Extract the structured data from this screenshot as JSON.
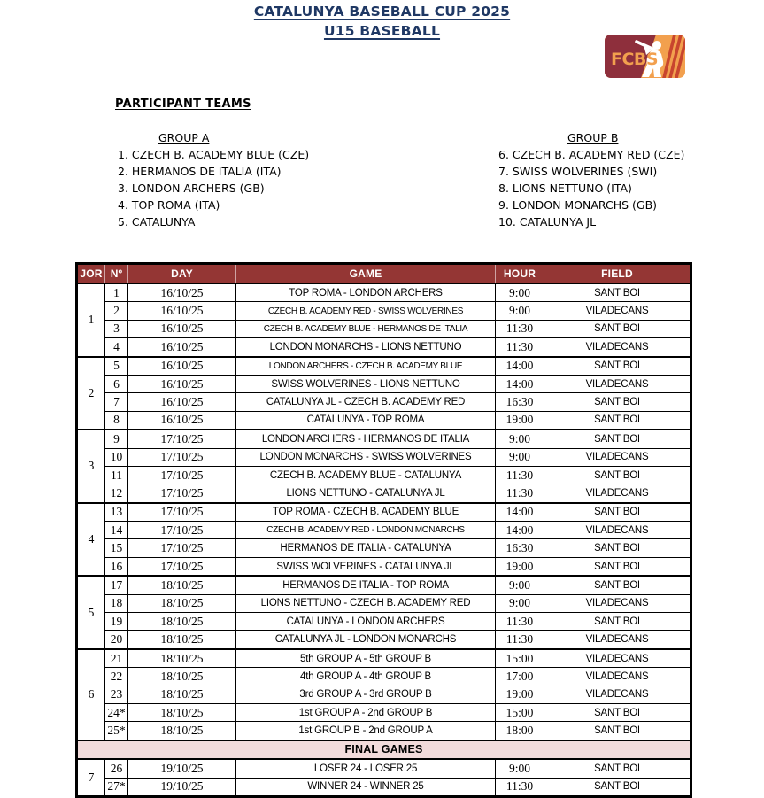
{
  "title": {
    "line1": "CATALUNYA BASEBALL CUP 2025",
    "line2": "U15 BASEBALL"
  },
  "logo": {
    "text": "FCBS"
  },
  "participants": {
    "heading": "PARTICIPANT TEAMS",
    "groups": [
      {
        "heading": "GROUP A",
        "teams": [
          "1. CZECH B. ACADEMY BLUE (CZE)",
          "2. HERMANOS DE ITALIA (ITA)",
          "3. LONDON ARCHERS (GB)",
          "4. TOP ROMA (ITA)",
          "5. CATALUNYA"
        ]
      },
      {
        "heading": "GROUP B",
        "teams": [
          "6. CZECH B. ACADEMY RED (CZE)",
          "7. SWISS WOLVERINES (SWI)",
          "8. LIONS NETTUNO (ITA)",
          "9. LONDON MONARCHS (GB)",
          "10. CATALUNYA JL"
        ]
      }
    ]
  },
  "schedule": {
    "headers": [
      "JOR",
      "Nº",
      "DAY",
      "GAME",
      "HOUR",
      "FIELD"
    ],
    "sections": [
      {
        "type": "jornada",
        "jor": "1",
        "rows": [
          {
            "no": "1",
            "day": "16/10/25",
            "game": "TOP ROMA - LONDON ARCHERS",
            "hour": "9:00",
            "field": "SANT BOI"
          },
          {
            "no": "2",
            "day": "16/10/25",
            "game": "CZECH B. ACADEMY RED - SWISS WOLVERINES",
            "hour": "9:00",
            "field": "VILADECANS"
          },
          {
            "no": "3",
            "day": "16/10/25",
            "game": "CZECH B. ACADEMY BLUE - HERMANOS DE ITALIA",
            "hour": "11:30",
            "field": "SANT BOI"
          },
          {
            "no": "4",
            "day": "16/10/25",
            "game": "LONDON MONARCHS - LIONS NETTUNO",
            "hour": "11:30",
            "field": "VILADECANS"
          }
        ]
      },
      {
        "type": "jornada",
        "jor": "2",
        "rows": [
          {
            "no": "5",
            "day": "16/10/25",
            "game": "LONDON ARCHERS - CZECH B. ACADEMY BLUE",
            "hour": "14:00",
            "field": "SANT BOI"
          },
          {
            "no": "6",
            "day": "16/10/25",
            "game": "SWISS WOLVERINES - LIONS NETTUNO",
            "hour": "14:00",
            "field": "VILADECANS"
          },
          {
            "no": "7",
            "day": "16/10/25",
            "game": "CATALUNYA JL - CZECH B. ACADEMY RED",
            "hour": "16:30",
            "field": "SANT BOI"
          },
          {
            "no": "8",
            "day": "16/10/25",
            "game": "CATALUNYA - TOP ROMA",
            "hour": "19:00",
            "field": "SANT BOI"
          }
        ]
      },
      {
        "type": "jornada",
        "jor": "3",
        "rows": [
          {
            "no": "9",
            "day": "17/10/25",
            "game": "LONDON ARCHERS - HERMANOS DE ITALIA",
            "hour": "9:00",
            "field": "SANT BOI"
          },
          {
            "no": "10",
            "day": "17/10/25",
            "game": "LONDON MONARCHS - SWISS WOLVERINES",
            "hour": "9:00",
            "field": "VILADECANS"
          },
          {
            "no": "11",
            "day": "17/10/25",
            "game": "CZECH B. ACADEMY BLUE - CATALUNYA",
            "hour": "11:30",
            "field": "SANT BOI"
          },
          {
            "no": "12",
            "day": "17/10/25",
            "game": "LIONS NETTUNO - CATALUNYA JL",
            "hour": "11:30",
            "field": "VILADECANS"
          }
        ]
      },
      {
        "type": "jornada",
        "jor": "4",
        "rows": [
          {
            "no": "13",
            "day": "17/10/25",
            "game": "TOP ROMA - CZECH B. ACADEMY BLUE",
            "hour": "14:00",
            "field": "SANT BOI"
          },
          {
            "no": "14",
            "day": "17/10/25",
            "game": "CZECH B. ACADEMY RED - LONDON MONARCHS",
            "hour": "14:00",
            "field": "VILADECANS"
          },
          {
            "no": "15",
            "day": "17/10/25",
            "game": "HERMANOS DE ITALIA - CATALUNYA",
            "hour": "16:30",
            "field": "SANT BOI"
          },
          {
            "no": "16",
            "day": "17/10/25",
            "game": "SWISS WOLVERINES - CATALUNYA JL",
            "hour": "19:00",
            "field": "SANT BOI"
          }
        ]
      },
      {
        "type": "jornada",
        "jor": "5",
        "rows": [
          {
            "no": "17",
            "day": "18/10/25",
            "game": "HERMANOS DE ITALIA - TOP ROMA",
            "hour": "9:00",
            "field": "SANT BOI"
          },
          {
            "no": "18",
            "day": "18/10/25",
            "game": "LIONS NETTUNO - CZECH B. ACADEMY RED",
            "hour": "9:00",
            "field": "VILADECANS"
          },
          {
            "no": "19",
            "day": "18/10/25",
            "game": "CATALUNYA - LONDON ARCHERS",
            "hour": "11:30",
            "field": "SANT BOI"
          },
          {
            "no": "20",
            "day": "18/10/25",
            "game": "CATALUNYA JL - LONDON MONARCHS",
            "hour": "11:30",
            "field": "VILADECANS"
          }
        ]
      },
      {
        "type": "jornada",
        "jor": "6",
        "rows": [
          {
            "no": "21",
            "day": "18/10/25",
            "game": "5th GROUP A - 5th GROUP B",
            "hour": "15:00",
            "field": "VILADECANS"
          },
          {
            "no": "22",
            "day": "18/10/25",
            "game": "4th GROUP A - 4th GROUP B",
            "hour": "17:00",
            "field": "VILADECANS"
          },
          {
            "no": "23",
            "day": "18/10/25",
            "game": "3rd GROUP A - 3rd GROUP B",
            "hour": "19:00",
            "field": "VILADECANS"
          },
          {
            "no": "24*",
            "day": "18/10/25",
            "game": "1st GROUP A - 2nd GROUP B",
            "hour": "15:00",
            "field": "SANT BOI"
          },
          {
            "no": "25*",
            "day": "18/10/25",
            "game": "1st GROUP B - 2nd GROUP A",
            "hour": "18:00",
            "field": "SANT BOI"
          }
        ]
      },
      {
        "type": "divider",
        "label": "FINAL GAMES"
      },
      {
        "type": "jornada",
        "jor": "7",
        "rows": [
          {
            "no": "26",
            "day": "19/10/25",
            "game": "LOSER 24 - LOSER 25",
            "hour": "9:00",
            "field": "SANT BOI"
          },
          {
            "no": "27*",
            "day": "19/10/25",
            "game": "WINNER 24 - WINNER 25",
            "hour": "11:30",
            "field": "SANT BOI"
          }
        ]
      }
    ]
  },
  "colors": {
    "title_navy": "#1F3864",
    "table_header_bg": "#943634",
    "final_games_bg": "#F2DBDB",
    "logo_maroon": "#8E2F3C",
    "logo_orange": "#F2A04E",
    "logo_stripe": "#C8452E"
  }
}
